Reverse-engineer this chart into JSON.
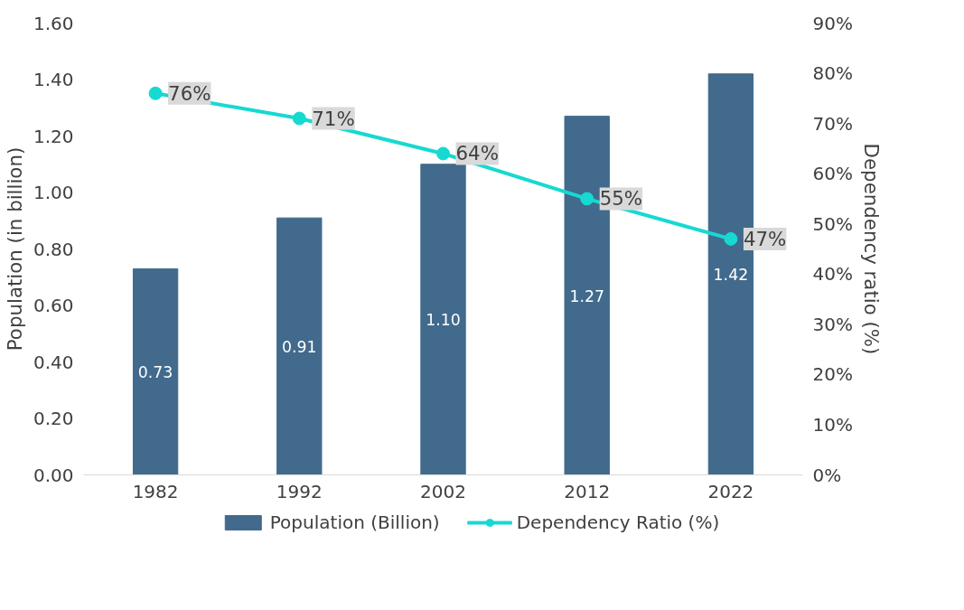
{
  "chart_data": {
    "type": "bar",
    "ylabel": "Population (in billion)",
    "y2label": "Dependency ratio (%)",
    "categories": [
      "1982",
      "1992",
      "2002",
      "2012",
      "2022"
    ],
    "series": [
      {
        "name": "Population (Billion)",
        "color": "#416a8d",
        "values": [
          0.73,
          0.91,
          1.1,
          1.27,
          1.42
        ],
        "value_labels": [
          "0.73",
          "0.91",
          "1.10",
          "1.27",
          "1.42"
        ]
      },
      {
        "name": "Dependency Ratio (%)",
        "type": "line",
        "axis": "y2",
        "color": "#16d9d2",
        "values": [
          76,
          71,
          64,
          55,
          47
        ],
        "value_labels": [
          "76%",
          "71%",
          "64%",
          "55%",
          "47%"
        ]
      }
    ],
    "ylim": [
      0,
      1.6
    ],
    "yticks": [
      {
        "value": 0,
        "label": "0.00"
      },
      {
        "value": 0.2,
        "label": "0.20"
      },
      {
        "value": 0.4,
        "label": "0.40"
      },
      {
        "value": 0.6,
        "label": "0.60"
      },
      {
        "value": 0.8,
        "label": "0.80"
      },
      {
        "value": 1.0,
        "label": "1.00"
      },
      {
        "value": 1.2,
        "label": "1.20"
      },
      {
        "value": 1.4,
        "label": "1.40"
      },
      {
        "value": 1.6,
        "label": "1.60"
      }
    ],
    "y2lim": [
      0,
      90
    ],
    "y2ticks": [
      {
        "value": 0,
        "label": "0%"
      },
      {
        "value": 10,
        "label": "10%"
      },
      {
        "value": 20,
        "label": "20%"
      },
      {
        "value": 30,
        "label": "30%"
      },
      {
        "value": 40,
        "label": "40%"
      },
      {
        "value": 50,
        "label": "50%"
      },
      {
        "value": 60,
        "label": "60%"
      },
      {
        "value": 70,
        "label": "70%"
      },
      {
        "value": 80,
        "label": "80%"
      },
      {
        "value": 90,
        "label": "90%"
      }
    ],
    "grid": false,
    "legend": "bottom",
    "marker": "circle",
    "line_style": "solid"
  }
}
